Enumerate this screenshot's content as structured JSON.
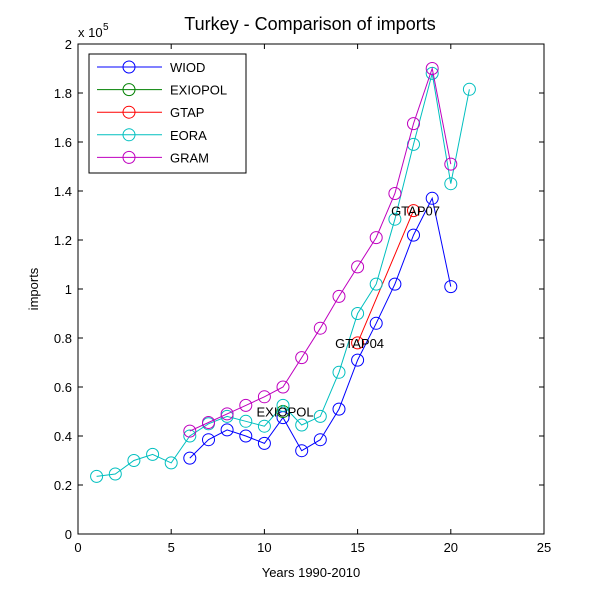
{
  "chart_data": {
    "type": "line",
    "title": "Turkey - Comparison of imports",
    "xlabel": "Years 1990-2010",
    "ylabel": "imports",
    "xlim": [
      0,
      25
    ],
    "ylim": [
      0,
      2
    ],
    "y_multiplier_label": "x 10",
    "y_multiplier_exponent": "5",
    "xticks": [
      "0",
      "5",
      "10",
      "15",
      "20",
      "25"
    ],
    "yticks": [
      "0",
      "0.2",
      "0.4",
      "0.6",
      "0.8",
      "1",
      "1.2",
      "1.4",
      "1.6",
      "1.8",
      "2"
    ],
    "grid": false,
    "legend_position": "top-left",
    "series": [
      {
        "name": "WIOD",
        "color": "#0000ff",
        "x": [
          6,
          7,
          8,
          9,
          10,
          11,
          12,
          13,
          14,
          15,
          16,
          17,
          18,
          19,
          20
        ],
        "y": [
          0.31,
          0.385,
          0.425,
          0.4,
          0.37,
          0.475,
          0.34,
          0.385,
          0.51,
          0.71,
          0.86,
          1.02,
          1.22,
          1.37,
          1.01
        ]
      },
      {
        "name": "EXIOPOL",
        "color": "#008000",
        "x": [
          11
        ],
        "y": [
          0.5
        ]
      },
      {
        "name": "GTAP",
        "color": "#ff0000",
        "x": [
          15,
          18
        ],
        "y": [
          0.78,
          1.32
        ]
      },
      {
        "name": "EORA",
        "color": "#00bfbf",
        "x": [
          1,
          2,
          3,
          4,
          5,
          6,
          7,
          8,
          9,
          10,
          11,
          12,
          13,
          14,
          15,
          16,
          17,
          18,
          19,
          20,
          21
        ],
        "y": [
          0.235,
          0.245,
          0.3,
          0.325,
          0.29,
          0.4,
          0.45,
          0.48,
          0.46,
          0.44,
          0.525,
          0.445,
          0.48,
          0.66,
          0.9,
          1.02,
          1.285,
          1.59,
          1.88,
          1.43,
          1.815
        ]
      },
      {
        "name": "GRAM",
        "color": "#bf00bf",
        "x": [
          6,
          7,
          8,
          9,
          10,
          11,
          12,
          13,
          14,
          15,
          16,
          17,
          18,
          19,
          20
        ],
        "y": [
          0.42,
          0.455,
          0.49,
          0.525,
          0.56,
          0.6,
          0.72,
          0.84,
          0.97,
          1.09,
          1.21,
          1.39,
          1.675,
          1.9,
          1.51
        ]
      }
    ],
    "annotations": [
      {
        "text": "EXIOPOL",
        "x": 11,
        "y": 0.5
      },
      {
        "text": "GTAP04",
        "x": 15,
        "y": 0.78
      },
      {
        "text": "GTAP07",
        "x": 18,
        "y": 1.32
      }
    ]
  }
}
